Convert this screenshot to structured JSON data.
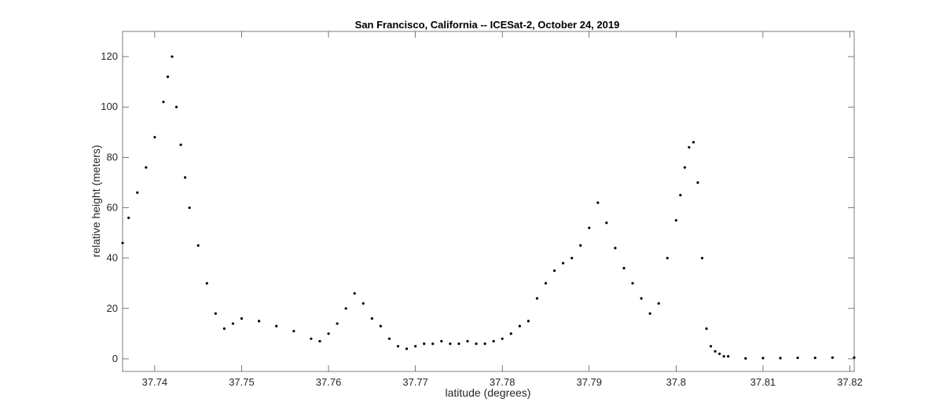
{
  "chart_data": {
    "type": "scatter",
    "title": "San Francisco, California -- ICESat-2, October 24, 2019",
    "xlabel": "latitude (degrees)",
    "ylabel": "relative height (meters)",
    "xlim": [
      37.7363,
      37.8205
    ],
    "ylim": [
      -5,
      130
    ],
    "xticks": [
      37.74,
      37.75,
      37.76,
      37.77,
      37.78,
      37.79,
      37.8,
      37.81,
      37.82
    ],
    "xtick_labels": [
      "37.74",
      "37.75",
      "37.76",
      "37.77",
      "37.78",
      "37.79",
      "37.8",
      "37.81",
      "37.82"
    ],
    "yticks": [
      0,
      20,
      40,
      60,
      80,
      100,
      120
    ],
    "ytick_labels": [
      "0",
      "20",
      "40",
      "60",
      "80",
      "100",
      "120"
    ],
    "grid": false,
    "marker_color": "#000000",
    "series": [
      {
        "x": [
          37.7363,
          37.737,
          37.738,
          37.739,
          37.74,
          37.741,
          37.7415,
          37.742,
          37.7425,
          37.743,
          37.7435,
          37.744,
          37.745,
          37.746,
          37.747,
          37.748,
          37.749,
          37.75,
          37.752,
          37.754,
          37.756,
          37.758,
          37.759,
          37.76,
          37.761,
          37.762,
          37.763,
          37.764,
          37.765,
          37.766,
          37.767,
          37.768,
          37.769,
          37.77,
          37.771,
          37.772,
          37.773,
          37.774,
          37.775,
          37.776,
          37.777,
          37.778,
          37.779,
          37.78,
          37.781,
          37.782,
          37.783,
          37.784,
          37.785,
          37.786,
          37.787,
          37.788,
          37.789,
          37.79,
          37.791,
          37.792,
          37.793,
          37.794,
          37.795,
          37.796,
          37.797,
          37.798,
          37.799,
          37.8,
          37.8005,
          37.801,
          37.8015,
          37.802,
          37.8025,
          37.803,
          37.8035,
          37.804,
          37.8045,
          37.805,
          37.8055,
          37.806,
          37.808,
          37.81,
          37.812,
          37.814,
          37.816,
          37.818,
          37.8205
        ],
        "y": [
          46,
          56,
          66,
          76,
          88,
          102,
          112,
          120,
          100,
          85,
          72,
          60,
          45,
          30,
          18,
          12,
          14,
          16,
          15,
          13,
          11,
          8,
          7,
          10,
          14,
          20,
          26,
          22,
          16,
          13,
          8,
          5,
          4,
          5,
          6,
          6,
          7,
          6,
          6,
          7,
          6,
          6,
          7,
          8,
          10,
          13,
          15,
          24,
          30,
          35,
          38,
          40,
          45,
          52,
          62,
          54,
          44,
          36,
          30,
          24,
          18,
          22,
          40,
          55,
          65,
          76,
          84,
          86,
          70,
          40,
          12,
          5,
          3,
          2,
          1,
          1,
          0.2,
          0.3,
          0.3,
          0.4,
          0.4,
          0.5,
          0.5
        ]
      }
    ]
  }
}
